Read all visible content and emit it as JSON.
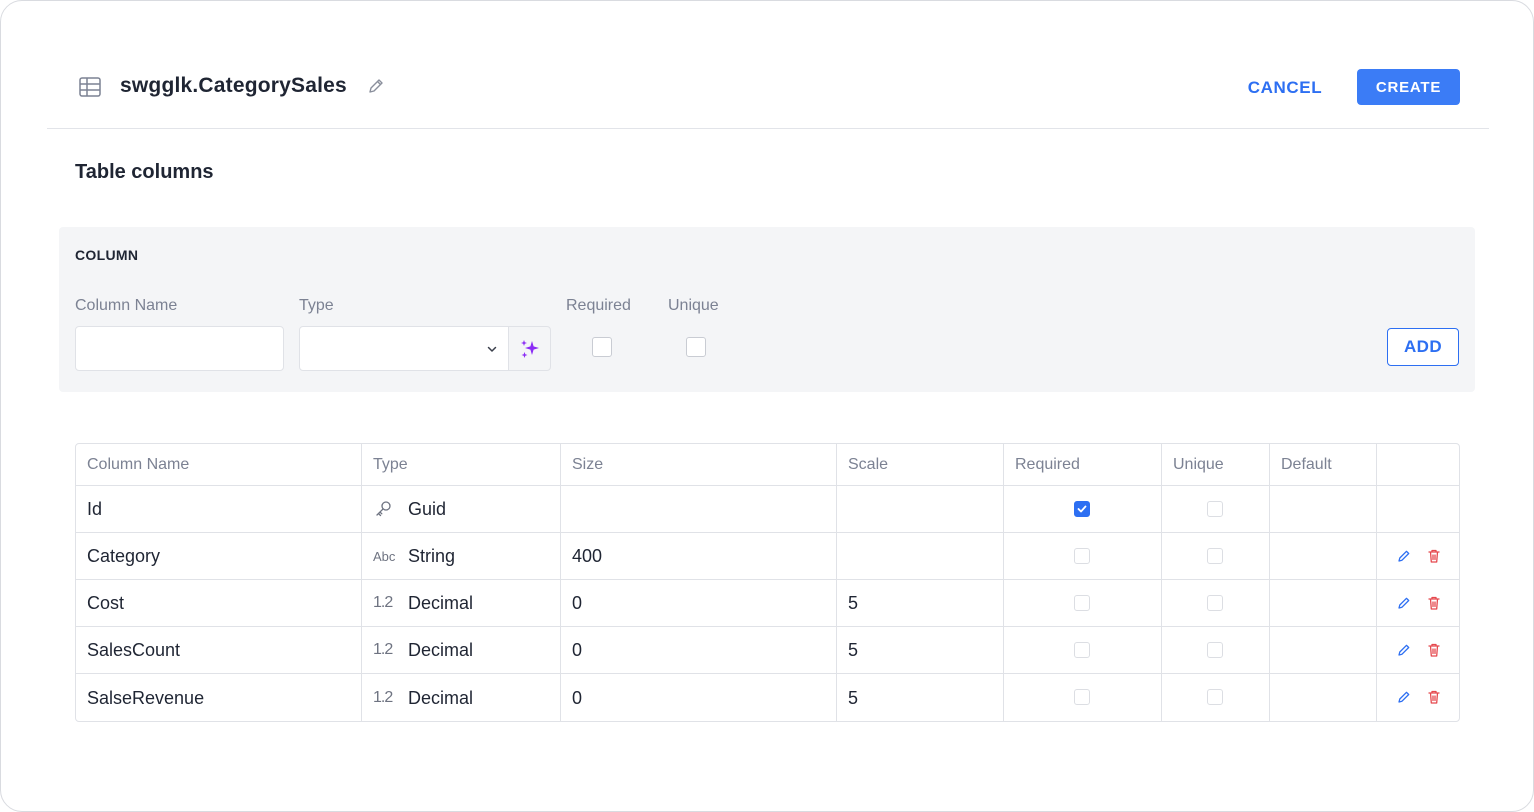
{
  "header": {
    "title": "swgglk.CategorySales",
    "cancel_label": "CANCEL",
    "create_label": "CREATE"
  },
  "section_title": "Table columns",
  "form": {
    "panel_title": "COLUMN",
    "labels": {
      "column_name": "Column Name",
      "type": "Type",
      "required": "Required",
      "unique": "Unique"
    },
    "column_name_value": "",
    "type_value": "",
    "add_label": "ADD"
  },
  "table": {
    "headers": [
      "Column Name",
      "Type",
      "Size",
      "Scale",
      "Required",
      "Unique",
      "Default",
      ""
    ],
    "rows": [
      {
        "name": "Id",
        "type_icon": "key-icon",
        "type_glyph": "",
        "type": "Guid",
        "size": "",
        "scale": "",
        "required": true,
        "unique": false,
        "default": "",
        "editable": false
      },
      {
        "name": "Category",
        "type_icon": "abc-icon",
        "type_glyph": "Abc",
        "type": "String",
        "size": "400",
        "scale": "",
        "required": false,
        "unique": false,
        "default": "",
        "editable": true
      },
      {
        "name": "Cost",
        "type_icon": "decimal-icon",
        "type_glyph": "1.2",
        "type": "Decimal",
        "size": "0",
        "scale": "5",
        "required": false,
        "unique": false,
        "default": "",
        "editable": true
      },
      {
        "name": "SalesCount",
        "type_icon": "decimal-icon",
        "type_glyph": "1.2",
        "type": "Decimal",
        "size": "0",
        "scale": "5",
        "required": false,
        "unique": false,
        "default": "",
        "editable": true
      },
      {
        "name": "SalseRevenue",
        "type_icon": "decimal-icon",
        "type_glyph": "1.2",
        "type": "Decimal",
        "size": "0",
        "scale": "5",
        "required": false,
        "unique": false,
        "default": "",
        "editable": true
      }
    ]
  },
  "colors": {
    "accent": "#3b7cf6",
    "link": "#2d6ff2",
    "danger": "#e5484d",
    "ai": "#8b2cf5"
  }
}
